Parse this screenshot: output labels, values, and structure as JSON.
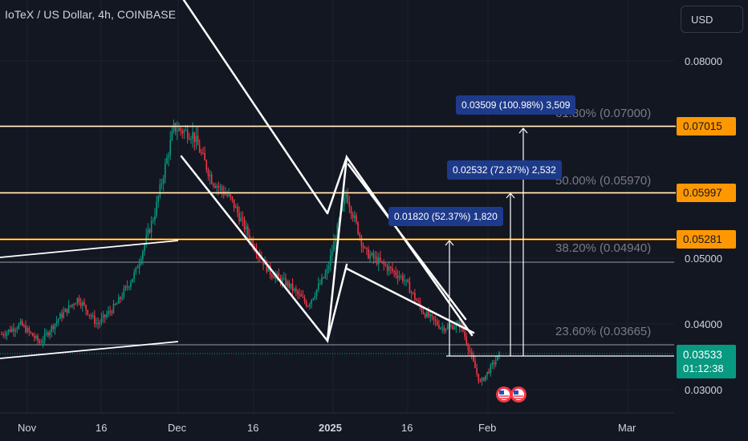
{
  "header": {
    "title": "IoTeX / US Dollar, 4h, COINBASE",
    "currency": "USD"
  },
  "price_axis": {
    "ticks": [
      "0.08000",
      "0.05000",
      "0.04000",
      "0.03000"
    ],
    "tick_values": [
      0.08,
      0.05,
      0.04,
      0.03
    ],
    "badges": [
      {
        "label": "0.07015",
        "value": 0.07015
      },
      {
        "label": "0.05997",
        "value": 0.05997
      },
      {
        "label": "0.05281",
        "value": 0.05281
      }
    ],
    "current": {
      "label": "0.03533",
      "value": 0.03533,
      "countdown": "01:12:38"
    }
  },
  "time_axis": {
    "ticks": [
      "Nov",
      "16",
      "Dec",
      "16",
      "2025",
      "16",
      "Feb",
      "Mar"
    ]
  },
  "fib_labels": [
    {
      "text": "61.80% (0.07000)",
      "value": 0.07
    },
    {
      "text": "50.00% (0.05970)",
      "value": 0.0597
    },
    {
      "text": "38.20% (0.04940)",
      "value": 0.0494
    },
    {
      "text": "23.60% (0.03665)",
      "value": 0.03665
    }
  ],
  "measurements": [
    {
      "text": "0.03509 (100.98%) 3,509"
    },
    {
      "text": "0.02532 (72.87%) 2,532"
    },
    {
      "text": "0.01820 (52.37%) 1,820"
    }
  ],
  "colors": {
    "background": "#131722",
    "up": "#089981",
    "down": "#f23645",
    "resistance": "#ff9800",
    "measure_box": "#1e3a8a"
  },
  "chart_data": {
    "type": "candlestick",
    "symbol": "IoTeX / US Dollar",
    "interval": "4h",
    "exchange": "COINBASE",
    "ylim": [
      0.0265,
      0.0895
    ],
    "resistance_levels": [
      0.07015,
      0.05997,
      0.05281
    ],
    "current_price": 0.03533,
    "price_path": [
      {
        "date": "Oct 27",
        "price": 0.0385
      },
      {
        "date": "Nov 1",
        "price": 0.04
      },
      {
        "date": "Nov 5",
        "price": 0.0372
      },
      {
        "date": "Nov 10",
        "price": 0.041
      },
      {
        "date": "Nov 14",
        "price": 0.044
      },
      {
        "date": "Nov 18",
        "price": 0.04
      },
      {
        "date": "Nov 23",
        "price": 0.043
      },
      {
        "date": "Nov 27",
        "price": 0.048
      },
      {
        "date": "Dec 1",
        "price": 0.057
      },
      {
        "date": "Dec 3",
        "price": 0.07
      },
      {
        "date": "Dec 6",
        "price": 0.069
      },
      {
        "date": "Dec 10",
        "price": 0.062
      },
      {
        "date": "Dec 15",
        "price": 0.059
      },
      {
        "date": "Dec 19",
        "price": 0.053
      },
      {
        "date": "Dec 23",
        "price": 0.048
      },
      {
        "date": "Dec 28",
        "price": 0.046
      },
      {
        "date": "Jan 1",
        "price": 0.043
      },
      {
        "date": "Jan 4",
        "price": 0.048
      },
      {
        "date": "Jan 6",
        "price": 0.06
      },
      {
        "date": "Jan 9",
        "price": 0.051
      },
      {
        "date": "Jan 14",
        "price": 0.049
      },
      {
        "date": "Jan 19",
        "price": 0.047
      },
      {
        "date": "Jan 24",
        "price": 0.042
      },
      {
        "date": "Jan 28",
        "price": 0.0395
      },
      {
        "date": "Jan 31",
        "price": 0.04
      },
      {
        "date": "Feb 2",
        "price": 0.031
      },
      {
        "date": "Feb 3",
        "price": 0.03533
      }
    ]
  }
}
